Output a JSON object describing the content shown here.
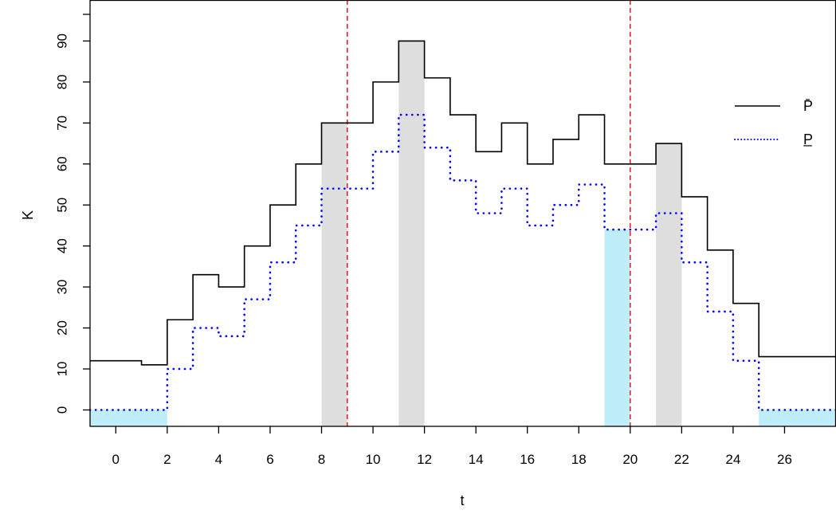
{
  "chart_data": {
    "type": "line",
    "xlabel": "t",
    "ylabel": "K",
    "xlim": [
      -1,
      28
    ],
    "ylim": [
      -4,
      100
    ],
    "x_ticks": [
      0,
      2,
      4,
      6,
      8,
      10,
      12,
      14,
      16,
      18,
      20,
      22,
      24,
      26
    ],
    "y_ticks": [
      0,
      10,
      20,
      30,
      40,
      50,
      60,
      70,
      80,
      90
    ],
    "series": [
      {
        "name": "P̄",
        "style": "step-solid",
        "color": "#000000",
        "x": [
          -1,
          1,
          2,
          3,
          4,
          5,
          6,
          7,
          8,
          9,
          10,
          11,
          12,
          13,
          14,
          15,
          16,
          17,
          18,
          19,
          20,
          21,
          22,
          23,
          24,
          25,
          28
        ],
        "values": [
          12,
          11,
          22,
          33,
          30,
          40,
          50,
          60,
          70,
          70,
          80,
          90,
          81,
          72,
          63,
          70,
          60,
          66,
          72,
          60,
          60,
          65,
          52,
          39,
          26,
          13,
          13
        ]
      },
      {
        "name": "P̲",
        "style": "step-dotted",
        "color": "#0000ff",
        "x": [
          -1,
          2,
          3,
          4,
          5,
          6,
          7,
          8,
          9,
          10,
          11,
          12,
          13,
          14,
          15,
          16,
          17,
          18,
          19,
          20,
          21,
          22,
          23,
          24,
          25,
          28
        ],
        "values": [
          0,
          10,
          20,
          18,
          27,
          36,
          45,
          54,
          54,
          63,
          72,
          64,
          56,
          48,
          54,
          45,
          50,
          55,
          44,
          44,
          48,
          36,
          24,
          12,
          0,
          0
        ]
      }
    ],
    "shaded_regions": [
      {
        "x0": -1,
        "x1": 2,
        "y0": -4,
        "y1": 0,
        "color": "#bfeefa"
      },
      {
        "x0": 8,
        "x1": 9,
        "y0": -4,
        "y1": 70,
        "color": "#dedede"
      },
      {
        "x0": 11,
        "x1": 12,
        "y0": -4,
        "y1": 90,
        "color": "#dedede"
      },
      {
        "x0": 19,
        "x1": 20,
        "y0": -4,
        "y1": 44,
        "color": "#bfeefa"
      },
      {
        "x0": 21,
        "x1": 22,
        "y0": -4,
        "y1": 65,
        "color": "#dedede"
      },
      {
        "x0": 25,
        "x1": 28,
        "y0": -4,
        "y1": 0,
        "color": "#bfeefa"
      }
    ],
    "vertical_lines": [
      {
        "x": 9,
        "color": "#e41a1c",
        "style": "dashed"
      },
      {
        "x": 20,
        "color": "#e41a1c",
        "style": "dashed"
      }
    ],
    "legend_position": "top-right",
    "grid": false
  }
}
